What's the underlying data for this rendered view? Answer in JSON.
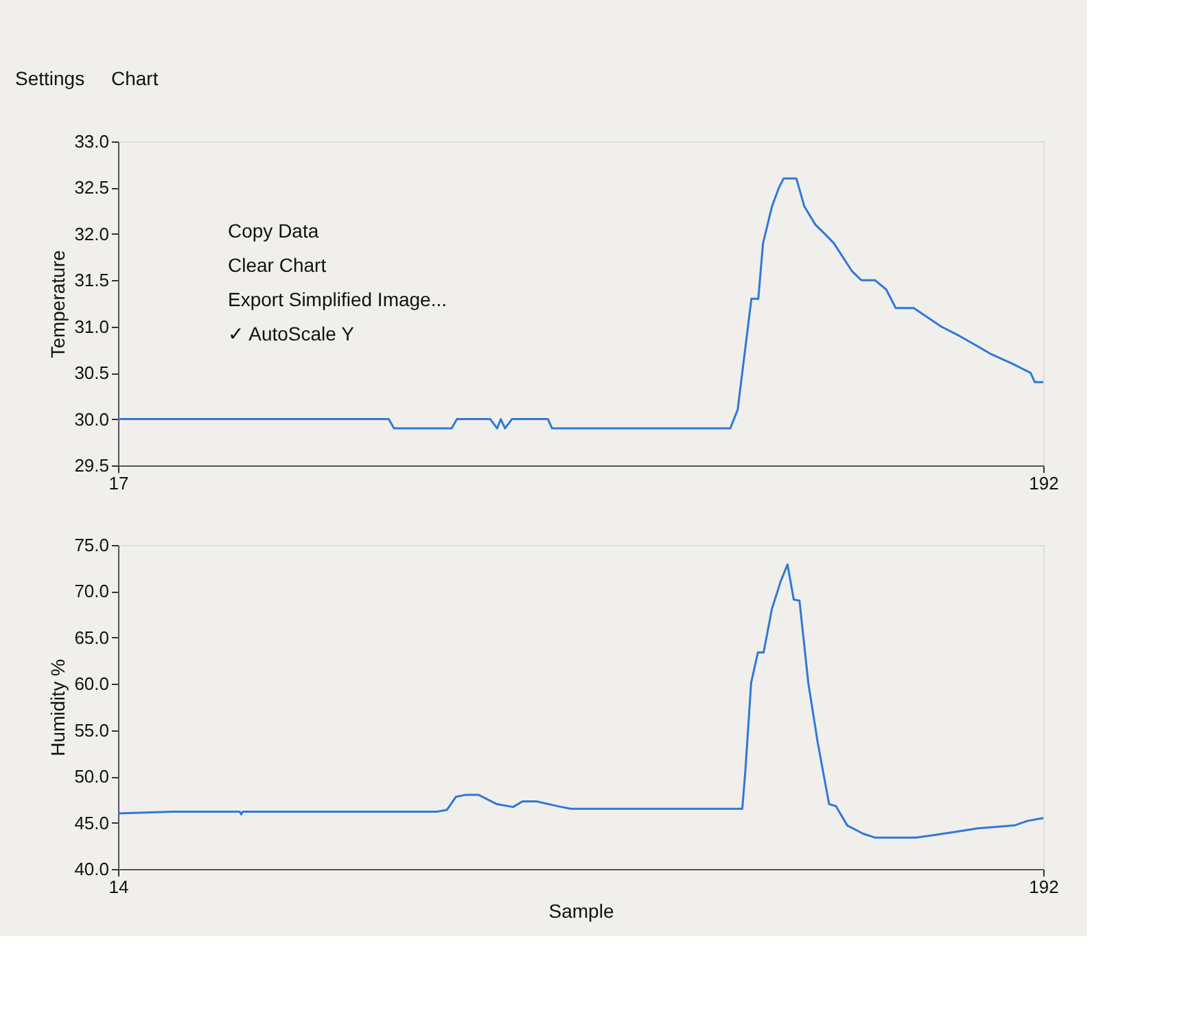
{
  "chart_data": [
    {
      "type": "line",
      "ylabel": "Temperature",
      "xlim": [
        17,
        192
      ],
      "xticks": [
        17,
        192
      ],
      "ylim": [
        29.5,
        33.0
      ],
      "yticks": [
        {
          "value": 29.5,
          "label": "29.5"
        },
        {
          "value": 30,
          "label": "30.0"
        },
        {
          "value": 30.5,
          "label": "30.5"
        },
        {
          "value": 31,
          "label": "31.0"
        },
        {
          "value": 31.5,
          "label": "31.5"
        },
        {
          "value": 32,
          "label": "32.0"
        },
        {
          "value": 32.5,
          "label": "32.5"
        },
        {
          "value": 33,
          "label": "33.0"
        }
      ],
      "grid": false,
      "marker": "none",
      "line_style": "solid",
      "annotations": [
        "Settings",
        "Chart",
        "Copy Data",
        "Clear Chart",
        "Export Simplified Image...",
        "✓ AutoScale Y"
      ],
      "series": [
        {
          "color": "#2f78d8",
          "x": [
            17,
            68.2,
            69.2,
            80.1,
            81.1,
            87.4,
            88.7,
            89.4,
            90.2,
            91.5,
            98.3,
            99.1,
            132.8,
            134.2,
            135.5,
            136.8,
            138.1,
            139.0,
            140.7,
            142.0,
            142.9,
            145.3,
            146.8,
            148.9,
            150.7,
            152.4,
            155.8,
            157.6,
            160.2,
            162.3,
            164.1,
            167.5,
            170.1,
            172.7,
            176.1,
            179.2,
            182.2,
            186.1,
            189.6,
            190.4,
            192
          ],
          "values": [
            30.0,
            30.0,
            29.9,
            29.9,
            30.0,
            30.0,
            29.9,
            30.0,
            29.9,
            30.0,
            30.0,
            29.9,
            29.9,
            30.1,
            30.7,
            31.3,
            31.3,
            31.9,
            32.3,
            32.5,
            32.6,
            32.6,
            32.3,
            32.1,
            32.0,
            31.9,
            31.6,
            31.5,
            31.5,
            31.4,
            31.2,
            31.2,
            31.1,
            31.0,
            30.9,
            30.8,
            30.7,
            30.6,
            30.5,
            30.4,
            30.4
          ]
        }
      ]
    },
    {
      "type": "line",
      "ylabel": "Humidity %",
      "xlabel": "Sample",
      "xlim": [
        14,
        192
      ],
      "xticks": [
        14,
        192
      ],
      "ylim": [
        40.0,
        75.0
      ],
      "yticks": [
        {
          "value": 40,
          "label": "40.0"
        },
        {
          "value": 45,
          "label": "45.0"
        },
        {
          "value": 50,
          "label": "50.0"
        },
        {
          "value": 55,
          "label": "55.0"
        },
        {
          "value": 60,
          "label": "60.0"
        },
        {
          "value": 65,
          "label": "65.0"
        },
        {
          "value": 70,
          "label": "70.0"
        },
        {
          "value": 75,
          "label": "75.0"
        }
      ],
      "grid": false,
      "marker": "none",
      "line_style": "solid",
      "series": [
        {
          "color": "#2f78d8",
          "x": [
            14,
            24.5,
            37.4,
            37.7,
            38.0,
            75.5,
            77.3,
            79.0,
            80.8,
            83.4,
            86.9,
            90.0,
            91.8,
            94.5,
            99.3,
            101.1,
            134.1,
            134.7,
            135.8,
            137.1,
            138.2,
            139.8,
            141.5,
            142.8,
            144.0,
            145.1,
            146.8,
            148.6,
            150.8,
            152.1,
            154.3,
            157.4,
            159.6,
            167.5,
            171.5,
            175.0,
            179.4,
            186.4,
            189.0,
            192
          ],
          "values": [
            46.0,
            46.2,
            46.2,
            45.9,
            46.2,
            46.2,
            46.4,
            47.8,
            48.0,
            48.0,
            47.0,
            46.7,
            47.3,
            47.3,
            46.7,
            46.5,
            46.5,
            50.7,
            60.1,
            63.4,
            63.4,
            68.1,
            71.1,
            72.9,
            69.1,
            69.0,
            60.1,
            53.7,
            47.0,
            46.8,
            44.7,
            43.8,
            43.4,
            43.4,
            43.7,
            44.0,
            44.4,
            44.7,
            45.2,
            45.5
          ]
        }
      ]
    }
  ]
}
